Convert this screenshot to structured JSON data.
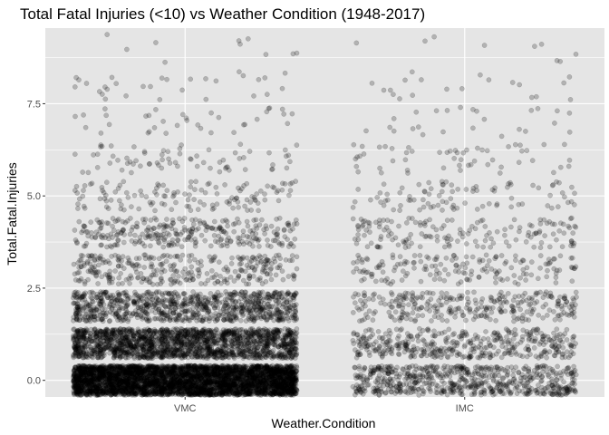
{
  "chart_data": {
    "type": "scatter",
    "title": "Total Fatal Injuries (<10) vs Weather Condition (1948-2017)",
    "xlabel": "Weather.Condition",
    "ylabel": "Total.Fatal.Injuries",
    "categories": [
      "VMC",
      "IMC"
    ],
    "yticks": [
      0.0,
      2.5,
      5.0,
      7.5
    ],
    "ytick_labels": [
      "0.0",
      "2.5",
      "5.0",
      "7.5"
    ],
    "ylim": [
      -0.45,
      9.55
    ],
    "jitter": {
      "width": 0.4,
      "height": 0.4
    },
    "point_style": {
      "color": "#000000",
      "alpha": 0.22
    },
    "panel_background": "#e5e5e5",
    "gridline_color": "#ffffff",
    "grid": true,
    "series": [
      {
        "category": "VMC",
        "values": [
          0,
          1,
          2,
          3,
          4,
          5,
          6,
          7,
          8,
          9
        ],
        "counts": [
          4200,
          1800,
          900,
          320,
          300,
          130,
          70,
          35,
          30,
          10
        ]
      },
      {
        "category": "IMC",
        "values": [
          0,
          1,
          2,
          3,
          4,
          5,
          6,
          7,
          8,
          9
        ],
        "counts": [
          650,
          420,
          300,
          170,
          160,
          90,
          55,
          25,
          20,
          9
        ]
      }
    ]
  }
}
